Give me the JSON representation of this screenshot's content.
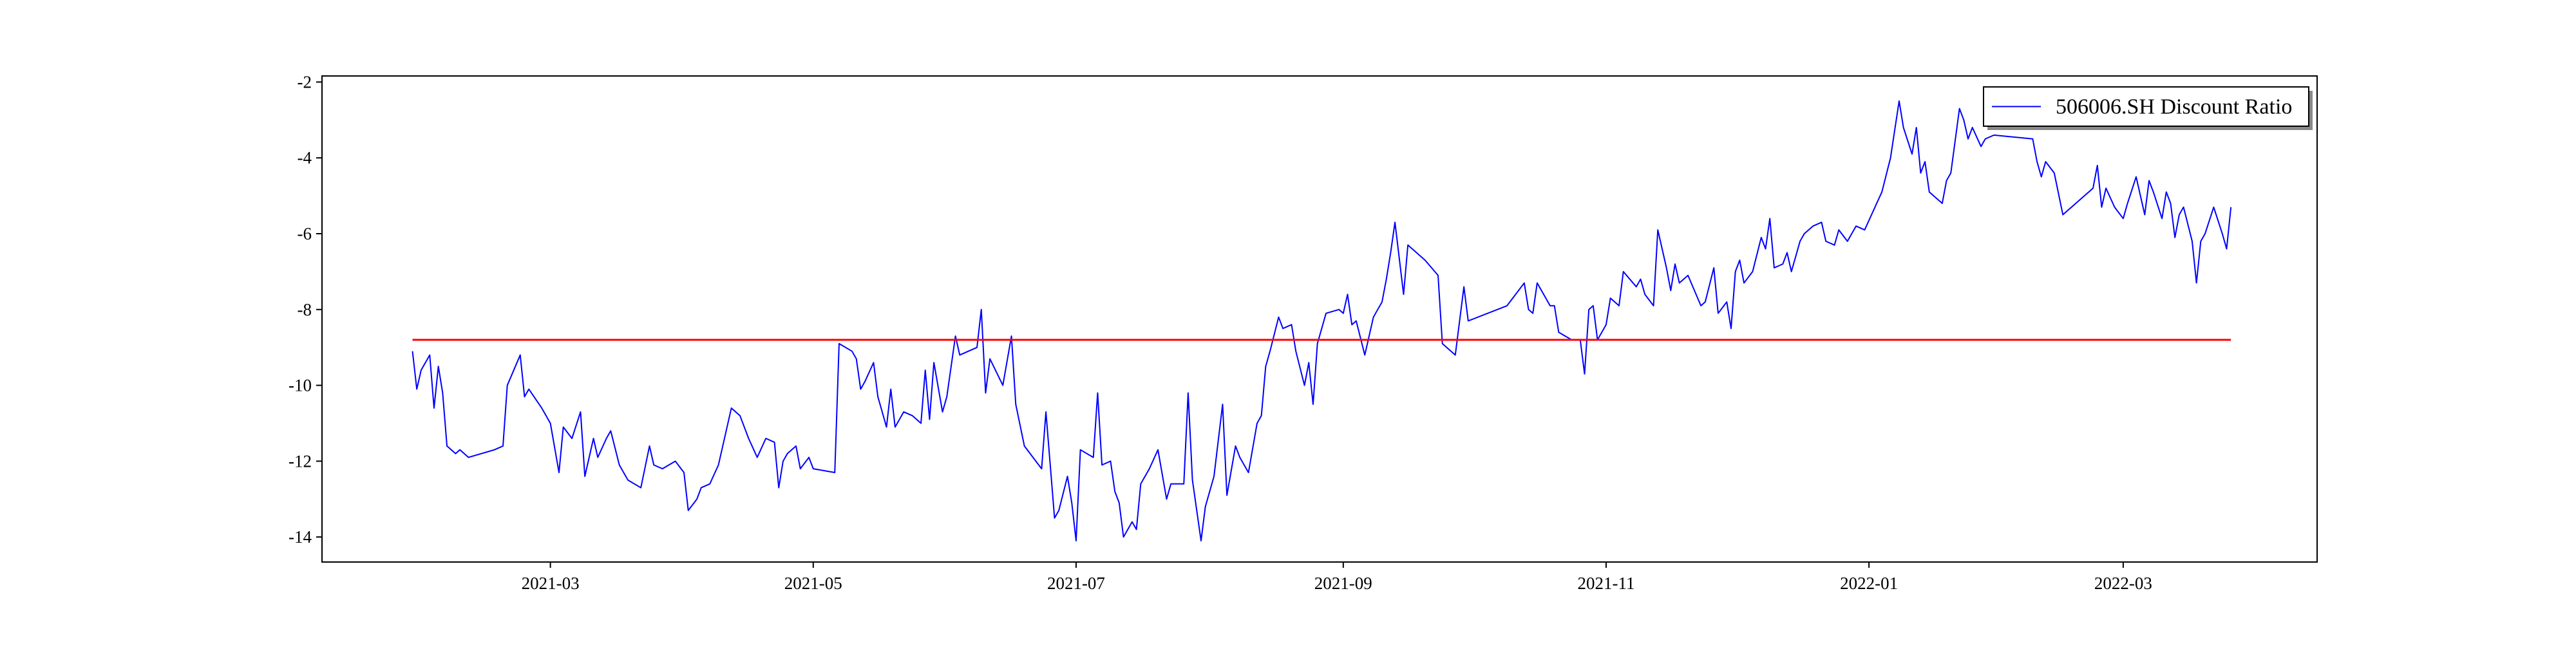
{
  "chart_data": {
    "type": "line",
    "x": [
      18655,
      18656,
      18657,
      18659,
      18660,
      18661,
      18662,
      18663,
      18665,
      18666,
      18668,
      18674,
      18676,
      18677,
      18680,
      18681,
      18682,
      18685,
      18687,
      18689,
      18690,
      18692,
      18694,
      18695,
      18697,
      18698,
      18700,
      18701,
      18703,
      18705,
      18708,
      18710,
      18711,
      18713,
      18716,
      18718,
      18719,
      18721,
      18722,
      18724,
      18726,
      18728,
      18729,
      18731,
      18733,
      18735,
      18737,
      18739,
      18740,
      18741,
      18742,
      18744,
      18745,
      18747,
      18748,
      18753,
      18754,
      18757,
      18758,
      18759,
      18760,
      18762,
      18763,
      18765,
      18766,
      18767,
      18769,
      18771,
      18773,
      18774,
      18775,
      18776,
      18778,
      18779,
      18781,
      18782,
      18784,
      18786,
      18787,
      18788,
      18789,
      18792,
      18794,
      18795,
      18797,
      18799,
      18801,
      18802,
      18804,
      18805,
      18807,
      18808,
      18809,
      18810,
      18813,
      18814,
      18815,
      18817,
      18818,
      18819,
      18820,
      18822,
      18823,
      18824,
      18826,
      18828,
      18830,
      18831,
      18834,
      18835,
      18836,
      18838,
      18839,
      18841,
      18843,
      18844,
      18846,
      18847,
      18849,
      18851,
      18852,
      18853,
      18854,
      18856,
      18857,
      18859,
      18860,
      18862,
      18863,
      18864,
      18865,
      18867,
      18870,
      18871,
      18872,
      18873,
      18874,
      18876,
      18878,
      18880,
      18881,
      18882,
      18883,
      18885,
      18886,
      18890,
      18893,
      18894,
      18897,
      18899,
      18900,
      18909,
      18911,
      18913,
      18914,
      18915,
      18916,
      18919,
      18920,
      18921,
      18924,
      18926,
      18927,
      18928,
      18929,
      18930,
      18932,
      18933,
      18935,
      18936,
      18939,
      18940,
      18941,
      18943,
      18944,
      18946,
      18947,
      18948,
      18949,
      18951,
      18954,
      18955,
      18957,
      18958,
      18960,
      18961,
      18962,
      18963,
      18964,
      18966,
      18968,
      18969,
      18970,
      18971,
      18973,
      18974,
      18975,
      18977,
      18978,
      18980,
      18982,
      18983,
      18985,
      18986,
      18988,
      18990,
      18992,
      18996,
      18998,
      19000,
      19001,
      19003,
      19004,
      19005,
      19006,
      19007,
      19008,
      19010,
      19011,
      19012,
      19014,
      19015,
      19016,
      19017,
      19019,
      19020,
      19022,
      19031,
      19032,
      19033,
      19034,
      19036,
      19038,
      19040,
      19043,
      19045,
      19046,
      19047,
      19048,
      19050,
      19052,
      19053,
      19055,
      19056,
      19057,
      19058,
      19059,
      19061,
      19062,
      19063,
      19064,
      19065,
      19066,
      19068,
      19069,
      19070,
      19071,
      19073,
      19075,
      19076,
      19077
    ],
    "series": [
      {
        "name": "506006.SH Discount Ratio",
        "color": "#0000ff",
        "values": [
          -9.1,
          -10.1,
          -9.6,
          -9.2,
          -10.6,
          -9.5,
          -10.2,
          -11.6,
          -11.8,
          -11.7,
          -11.9,
          -11.7,
          -11.6,
          -10.0,
          -9.2,
          -10.3,
          -10.1,
          -10.6,
          -11.0,
          -12.3,
          -11.1,
          -11.4,
          -10.7,
          -12.4,
          -11.4,
          -11.9,
          -11.4,
          -11.2,
          -12.1,
          -12.5,
          -12.7,
          -11.6,
          -12.1,
          -12.2,
          -12.0,
          -12.3,
          -13.3,
          -13.0,
          -12.7,
          -12.6,
          -12.1,
          -11.1,
          -10.6,
          -10.8,
          -11.4,
          -11.9,
          -11.4,
          -11.5,
          -12.7,
          -12.0,
          -11.8,
          -11.6,
          -12.2,
          -11.9,
          -12.2,
          -12.3,
          -8.9,
          -9.1,
          -9.3,
          -10.1,
          -9.9,
          -9.4,
          -10.3,
          -11.1,
          -10.1,
          -11.1,
          -10.7,
          -10.8,
          -11.0,
          -9.6,
          -10.9,
          -9.4,
          -10.7,
          -10.3,
          -8.7,
          -9.2,
          -9.1,
          -9.0,
          -8.0,
          -10.2,
          -9.3,
          -10.0,
          -8.7,
          -10.5,
          -11.6,
          -11.9,
          -12.2,
          -10.7,
          -13.5,
          -13.3,
          -12.4,
          -13.1,
          -14.1,
          -11.7,
          -11.9,
          -10.2,
          -12.1,
          -12.0,
          -12.8,
          -13.1,
          -14.0,
          -13.6,
          -13.8,
          -12.6,
          -12.2,
          -11.7,
          -13.0,
          -12.6,
          -12.6,
          -10.2,
          -12.5,
          -14.1,
          -13.2,
          -12.4,
          -10.5,
          -12.9,
          -11.6,
          -11.9,
          -12.3,
          -11.0,
          -10.8,
          -9.5,
          -9.1,
          -8.2,
          -8.5,
          -8.4,
          -9.1,
          -10.0,
          -9.4,
          -10.5,
          -8.9,
          -8.1,
          -8.0,
          -8.1,
          -7.6,
          -8.4,
          -8.3,
          -9.2,
          -8.2,
          -7.8,
          -7.2,
          -6.5,
          -5.7,
          -7.6,
          -6.3,
          -6.7,
          -7.1,
          -8.9,
          -9.2,
          -7.4,
          -8.3,
          -7.9,
          -7.6,
          -7.3,
          -8.0,
          -8.1,
          -7.3,
          -7.9,
          -7.9,
          -8.6,
          -8.8,
          -8.8,
          -9.7,
          -8.0,
          -7.9,
          -8.8,
          -8.4,
          -7.7,
          -7.9,
          -7.0,
          -7.4,
          -7.2,
          -7.6,
          -7.9,
          -5.9,
          -6.9,
          -7.5,
          -6.8,
          -7.3,
          -7.1,
          -7.9,
          -7.8,
          -6.9,
          -8.1,
          -7.8,
          -8.5,
          -7.0,
          -6.7,
          -7.3,
          -7.0,
          -6.1,
          -6.4,
          -5.6,
          -6.9,
          -6.8,
          -6.5,
          -7.0,
          -6.2,
          -6.0,
          -5.8,
          -5.7,
          -6.2,
          -6.3,
          -5.9,
          -6.2,
          -5.8,
          -5.9,
          -4.9,
          -4.0,
          -2.5,
          -3.2,
          -3.9,
          -3.2,
          -4.4,
          -4.1,
          -4.9,
          -5.0,
          -5.2,
          -4.6,
          -4.4,
          -2.7,
          -3.0,
          -3.5,
          -3.2,
          -3.7,
          -3.5,
          -3.4,
          -3.5,
          -4.1,
          -4.5,
          -4.1,
          -4.4,
          -5.5,
          -5.3,
          -5.0,
          -4.8,
          -4.2,
          -5.3,
          -4.8,
          -5.3,
          -5.6,
          -5.2,
          -4.5,
          -5.0,
          -5.5,
          -4.6,
          -4.9,
          -5.6,
          -4.9,
          -5.2,
          -6.1,
          -5.5,
          -5.3,
          -6.2,
          -7.3,
          -6.2,
          -6.0,
          -5.3,
          -6.0,
          -6.4,
          -5.3
        ]
      }
    ],
    "reference_line": {
      "value": -8.8,
      "x": [
        18655,
        19077
      ],
      "color": "#ff0000"
    },
    "xlim": [
      18634,
      19097
    ],
    "ylim": [
      -14.66,
      -1.84
    ],
    "xticks": [
      {
        "value": 18687,
        "label": "2021-03"
      },
      {
        "value": 18748,
        "label": "2021-05"
      },
      {
        "value": 18809,
        "label": "2021-07"
      },
      {
        "value": 18871,
        "label": "2021-09"
      },
      {
        "value": 18932,
        "label": "2021-11"
      },
      {
        "value": 18993,
        "label": "2022-01"
      },
      {
        "value": 19052,
        "label": "2022-03"
      }
    ],
    "yticks": [
      -14,
      -12,
      -10,
      -8,
      -6,
      -4,
      -2
    ],
    "grid": false,
    "legend": "upper right"
  }
}
